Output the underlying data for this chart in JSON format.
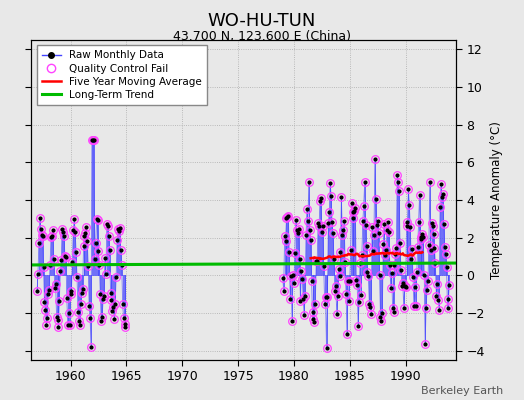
{
  "title": "WO-HU-TUN",
  "subtitle": "43.700 N, 123.600 E (China)",
  "credit": "Berkeley Earth",
  "ylabel_right": "Temperature Anomaly (°C)",
  "xlim": [
    1956.5,
    1994.5
  ],
  "ylim": [
    -4.5,
    12.5
  ],
  "yticks": [
    -4,
    -2,
    0,
    2,
    4,
    6,
    8,
    10,
    12
  ],
  "xticks": [
    1960,
    1965,
    1970,
    1975,
    1980,
    1985,
    1990
  ],
  "bg_color": "#e8e8e8",
  "raw_color": "#4444ff",
  "qc_color": "#ff44ff",
  "moving_avg_color": "#ff0000",
  "trend_color": "#00bb00",
  "trend_y": 0.6,
  "seed": 42
}
